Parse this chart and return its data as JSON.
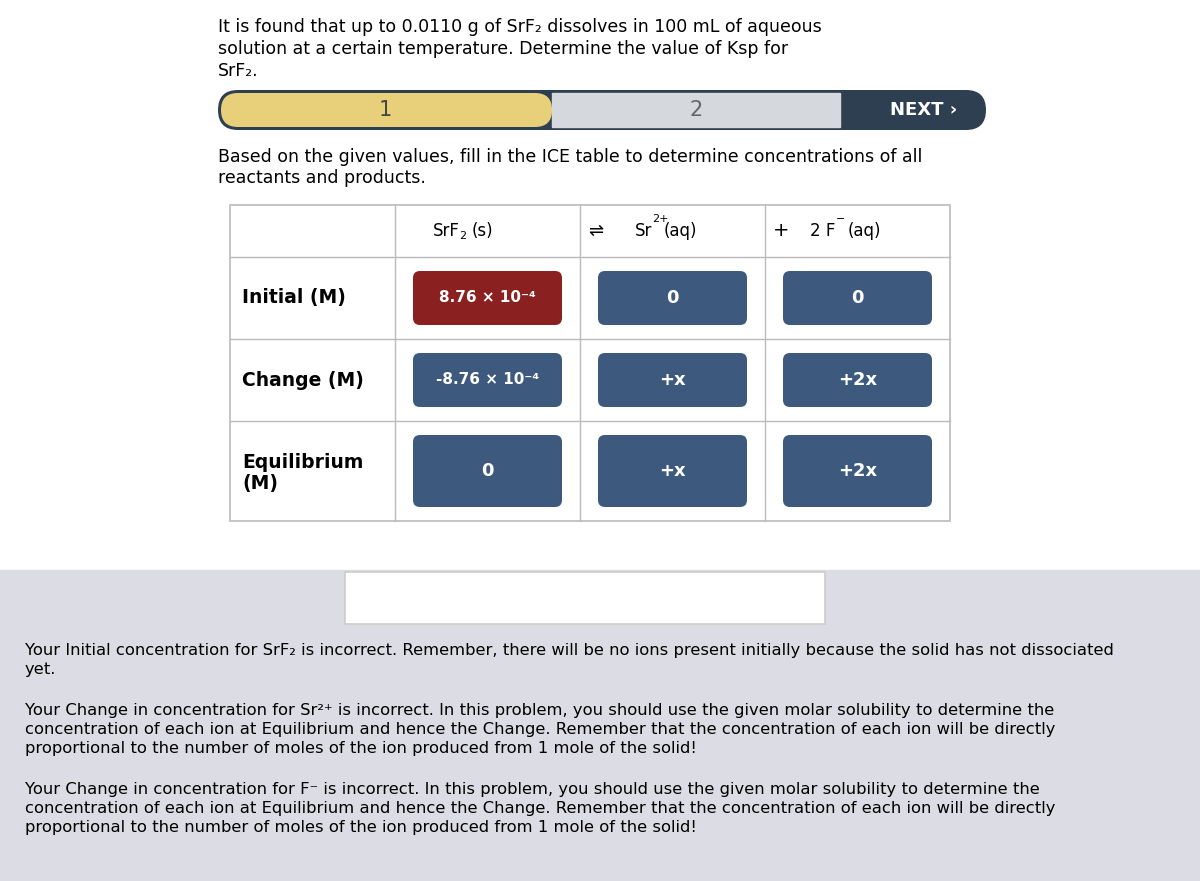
{
  "bg_color": "#ffffff",
  "bottom_bg_color": "#dcdce4",
  "header_text_line1": "It is found that up to 0.0110 g of SrF₂ dissolves in 100 mL of aqueous",
  "header_text_line2": "solution at a certain temperature. Determine the value of Ksp for",
  "header_text_line3": "SrF₂.",
  "nav_bar_dark": "#2e3f52",
  "nav_bar_yellow": "#e8cf7a",
  "nav_bar_light": "#d5d8dc",
  "nav_label_1": "1",
  "nav_label_2": "2",
  "nav_next": "NEXT ›",
  "instruction_line1": "Based on the given values, fill in the ICE table to determine concentrations of all",
  "instruction_line2": "reactants and products.",
  "cell_color_normal": "#3d5a7e",
  "cell_color_incorrect": "#8b2020",
  "cells": [
    [
      "8.76 × 10⁻⁴",
      "0",
      "0"
    ],
    [
      "-8.76 × 10⁻⁴",
      "+x",
      "+2x"
    ],
    [
      "0",
      "+x",
      "+2x"
    ]
  ],
  "cell_incorrect": [
    [
      0,
      0
    ]
  ],
  "row_labels": [
    "Initial (M)",
    "Change (M)",
    "Equilibrium\n(M)"
  ],
  "feedback_texts": [
    [
      "Your Initial concentration for SrF₂ is incorrect. Remember, there will be no ions present initially because the solid has not dissociated",
      "yet."
    ],
    [
      "Your Change in concentration for Sr²⁺ is incorrect. In this problem, you should use the given molar solubility to determine the",
      "concentration of each ion at Equilibrium and hence the Change. Remember that the concentration of each ion will be directly",
      "proportional to the number of moles of the ion produced from 1 mole of the solid!"
    ],
    [
      "Your Change in concentration for F⁻ is incorrect. In this problem, you should use the given molar solubility to determine the",
      "concentration of each ion at Equilibrium and hence the Change. Remember that the concentration of each ion will be directly",
      "proportional to the number of moles of the ion produced from 1 mole of the solid!"
    ]
  ]
}
